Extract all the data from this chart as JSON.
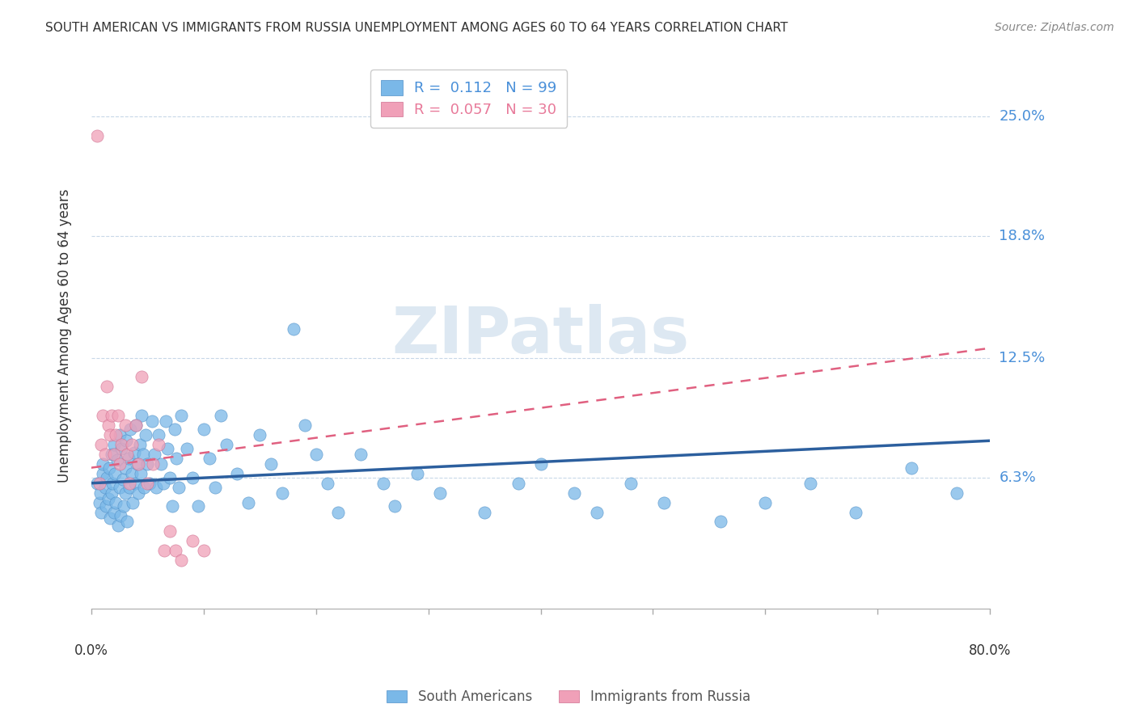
{
  "title": "SOUTH AMERICAN VS IMMIGRANTS FROM RUSSIA UNEMPLOYMENT AMONG AGES 60 TO 64 YEARS CORRELATION CHART",
  "source": "Source: ZipAtlas.com",
  "ylabel": "Unemployment Among Ages 60 to 64 years",
  "ytick_labels": [
    "6.3%",
    "12.5%",
    "18.8%",
    "25.0%"
  ],
  "ytick_values": [
    0.063,
    0.125,
    0.188,
    0.25
  ],
  "xlim": [
    0.0,
    0.8
  ],
  "ylim": [
    -0.005,
    0.278
  ],
  "color_blue": "#7ab8e8",
  "color_pink": "#f0a0b8",
  "color_blue_line": "#2c5f9e",
  "color_pink_line": "#e06080",
  "color_blue_text": "#4a90d9",
  "color_pink_text": "#e87a9a",
  "watermark": "ZIPatlas",
  "blue_R": 0.112,
  "blue_N": 99,
  "pink_R": 0.057,
  "pink_N": 30,
  "blue_line_x0": 0.0,
  "blue_line_y0": 0.06,
  "blue_line_x1": 0.8,
  "blue_line_y1": 0.082,
  "pink_line_x0": 0.0,
  "pink_line_y0": 0.068,
  "pink_line_x1": 0.8,
  "pink_line_y1": 0.13,
  "blue_x": [
    0.005,
    0.007,
    0.008,
    0.009,
    0.01,
    0.01,
    0.012,
    0.013,
    0.014,
    0.015,
    0.016,
    0.017,
    0.018,
    0.018,
    0.019,
    0.02,
    0.02,
    0.021,
    0.022,
    0.023,
    0.024,
    0.025,
    0.025,
    0.026,
    0.027,
    0.028,
    0.029,
    0.03,
    0.03,
    0.031,
    0.032,
    0.033,
    0.034,
    0.035,
    0.036,
    0.037,
    0.038,
    0.039,
    0.04,
    0.041,
    0.042,
    0.043,
    0.044,
    0.045,
    0.046,
    0.047,
    0.048,
    0.05,
    0.052,
    0.054,
    0.056,
    0.058,
    0.06,
    0.062,
    0.064,
    0.066,
    0.068,
    0.07,
    0.072,
    0.074,
    0.076,
    0.078,
    0.08,
    0.085,
    0.09,
    0.095,
    0.1,
    0.105,
    0.11,
    0.115,
    0.12,
    0.13,
    0.14,
    0.15,
    0.16,
    0.17,
    0.18,
    0.19,
    0.2,
    0.21,
    0.22,
    0.24,
    0.26,
    0.27,
    0.29,
    0.31,
    0.35,
    0.38,
    0.4,
    0.43,
    0.45,
    0.48,
    0.51,
    0.56,
    0.6,
    0.64,
    0.68,
    0.73,
    0.77
  ],
  "blue_y": [
    0.06,
    0.05,
    0.055,
    0.045,
    0.065,
    0.07,
    0.058,
    0.048,
    0.063,
    0.052,
    0.068,
    0.042,
    0.075,
    0.055,
    0.06,
    0.045,
    0.08,
    0.065,
    0.05,
    0.072,
    0.038,
    0.085,
    0.058,
    0.043,
    0.078,
    0.062,
    0.048,
    0.068,
    0.055,
    0.082,
    0.04,
    0.073,
    0.058,
    0.088,
    0.065,
    0.05,
    0.076,
    0.06,
    0.09,
    0.07,
    0.055,
    0.08,
    0.065,
    0.095,
    0.075,
    0.058,
    0.085,
    0.07,
    0.06,
    0.092,
    0.075,
    0.058,
    0.085,
    0.07,
    0.06,
    0.092,
    0.078,
    0.063,
    0.048,
    0.088,
    0.073,
    0.058,
    0.095,
    0.078,
    0.063,
    0.048,
    0.088,
    0.073,
    0.058,
    0.095,
    0.08,
    0.065,
    0.05,
    0.085,
    0.07,
    0.055,
    0.14,
    0.09,
    0.075,
    0.06,
    0.045,
    0.075,
    0.06,
    0.048,
    0.065,
    0.055,
    0.045,
    0.06,
    0.07,
    0.055,
    0.045,
    0.06,
    0.05,
    0.04,
    0.05,
    0.06,
    0.045,
    0.068,
    0.055
  ],
  "pink_x": [
    0.005,
    0.007,
    0.009,
    0.01,
    0.012,
    0.014,
    0.015,
    0.017,
    0.018,
    0.02,
    0.022,
    0.024,
    0.025,
    0.027,
    0.03,
    0.032,
    0.034,
    0.036,
    0.04,
    0.042,
    0.045,
    0.05,
    0.055,
    0.06,
    0.065,
    0.07,
    0.075,
    0.08,
    0.09,
    0.1
  ],
  "pink_y": [
    0.24,
    0.06,
    0.08,
    0.095,
    0.075,
    0.11,
    0.09,
    0.085,
    0.095,
    0.075,
    0.085,
    0.095,
    0.07,
    0.08,
    0.09,
    0.075,
    0.06,
    0.08,
    0.09,
    0.07,
    0.115,
    0.06,
    0.07,
    0.08,
    0.025,
    0.035,
    0.025,
    0.02,
    0.03,
    0.025
  ]
}
